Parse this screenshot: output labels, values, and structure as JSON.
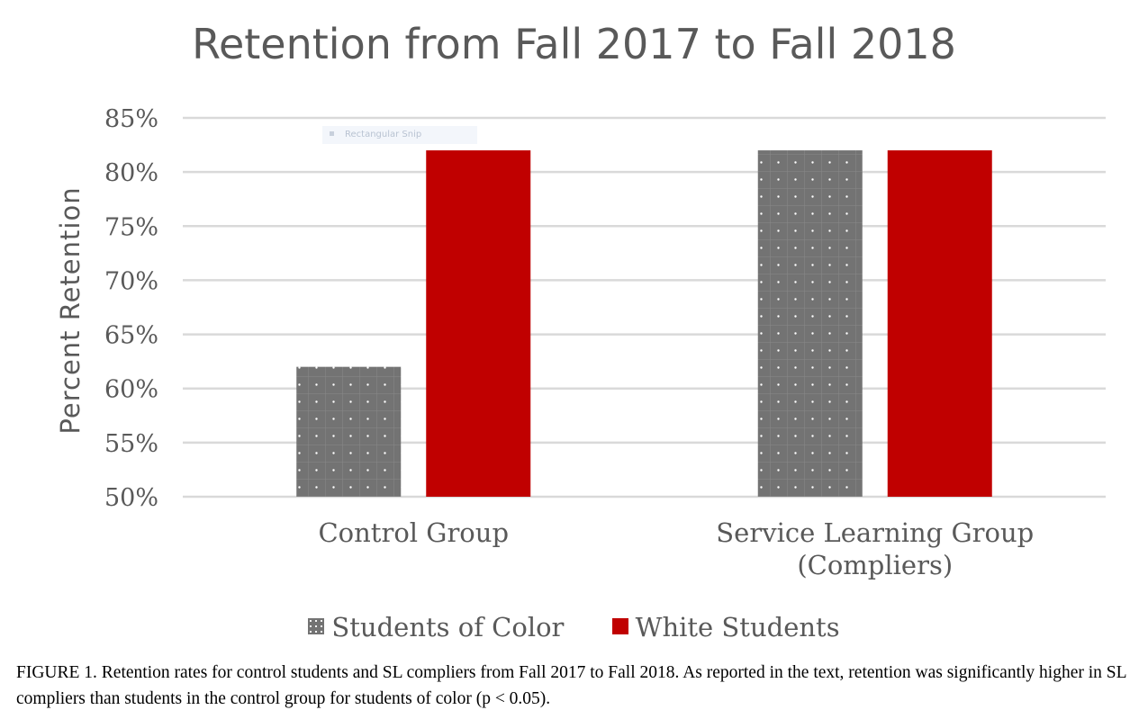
{
  "chart_data": {
    "type": "bar",
    "title": "Retention from Fall 2017 to Fall 2018",
    "ylabel": "Percent Retention",
    "xlabel": "",
    "categories": [
      "Control Group",
      "Service Learning Group (Compliers)"
    ],
    "category_lines": [
      [
        "Control Group"
      ],
      [
        "Service Learning Group",
        "(Compliers)"
      ]
    ],
    "series": [
      {
        "name": "Students of Color",
        "values": [
          62,
          82
        ],
        "color": "#737373",
        "pattern": "dotted-grid"
      },
      {
        "name": "White Students",
        "values": [
          82,
          82
        ],
        "color": "#c00000"
      }
    ],
    "ylim": [
      50,
      85
    ],
    "yticks": [
      50,
      55,
      60,
      65,
      70,
      75,
      80,
      85
    ],
    "ytick_labels": [
      "50%",
      "55%",
      "60%",
      "65%",
      "70%",
      "75%",
      "80%",
      "85%"
    ],
    "grid": true,
    "legend_position": "bottom"
  },
  "overlay": {
    "snip_text": "Rectangular Snip"
  },
  "caption": "FIGURE 1. Retention rates for control students and SL compliers from Fall 2017 to Fall 2018. As reported in the text, retention was significantly higher in SL compliers than students in the control group for students of color (p < 0.05)."
}
